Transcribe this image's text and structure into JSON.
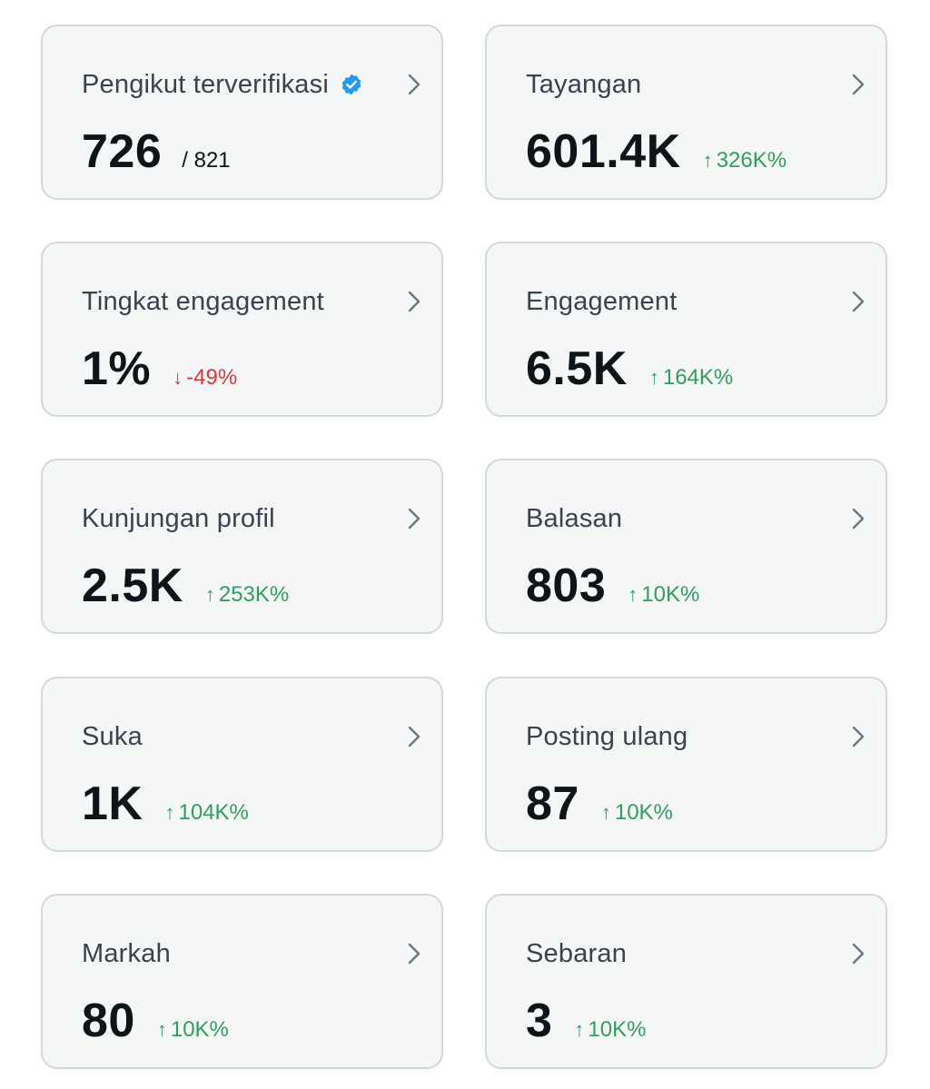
{
  "cards": [
    {
      "label": "Pengikut terverifikasi",
      "value": "726",
      "suffix": "/ 821",
      "icon": "verified-badge-icon"
    },
    {
      "label": "Tayangan",
      "value": "601.4K",
      "delta": {
        "direction": "up",
        "arrow": "↑",
        "text": "326K%"
      }
    },
    {
      "label": "Tingkat engagement",
      "value": "1%",
      "delta": {
        "direction": "down",
        "arrow": "↓",
        "text": "-49%"
      }
    },
    {
      "label": "Engagement",
      "value": "6.5K",
      "delta": {
        "direction": "up",
        "arrow": "↑",
        "text": "164K%"
      }
    },
    {
      "label": "Kunjungan profil",
      "value": "2.5K",
      "delta": {
        "direction": "up",
        "arrow": "↑",
        "text": "253K%"
      }
    },
    {
      "label": "Balasan",
      "value": "803",
      "delta": {
        "direction": "up",
        "arrow": "↑",
        "text": "10K%"
      }
    },
    {
      "label": "Suka",
      "value": "1K",
      "delta": {
        "direction": "up",
        "arrow": "↑",
        "text": "104K%"
      }
    },
    {
      "label": "Posting ulang",
      "value": "87",
      "delta": {
        "direction": "up",
        "arrow": "↑",
        "text": "10K%"
      }
    },
    {
      "label": "Markah",
      "value": "80",
      "delta": {
        "direction": "up",
        "arrow": "↑",
        "text": "10K%"
      }
    },
    {
      "label": "Sebaran",
      "value": "3",
      "delta": {
        "direction": "up",
        "arrow": "↑",
        "text": "10K%"
      }
    }
  ],
  "colors": {
    "card_bg": "#f5f7f7",
    "card_border": "#cfd9de",
    "up": "#2f9e63",
    "down": "#d9363e",
    "verified": "#1d9bf0"
  }
}
